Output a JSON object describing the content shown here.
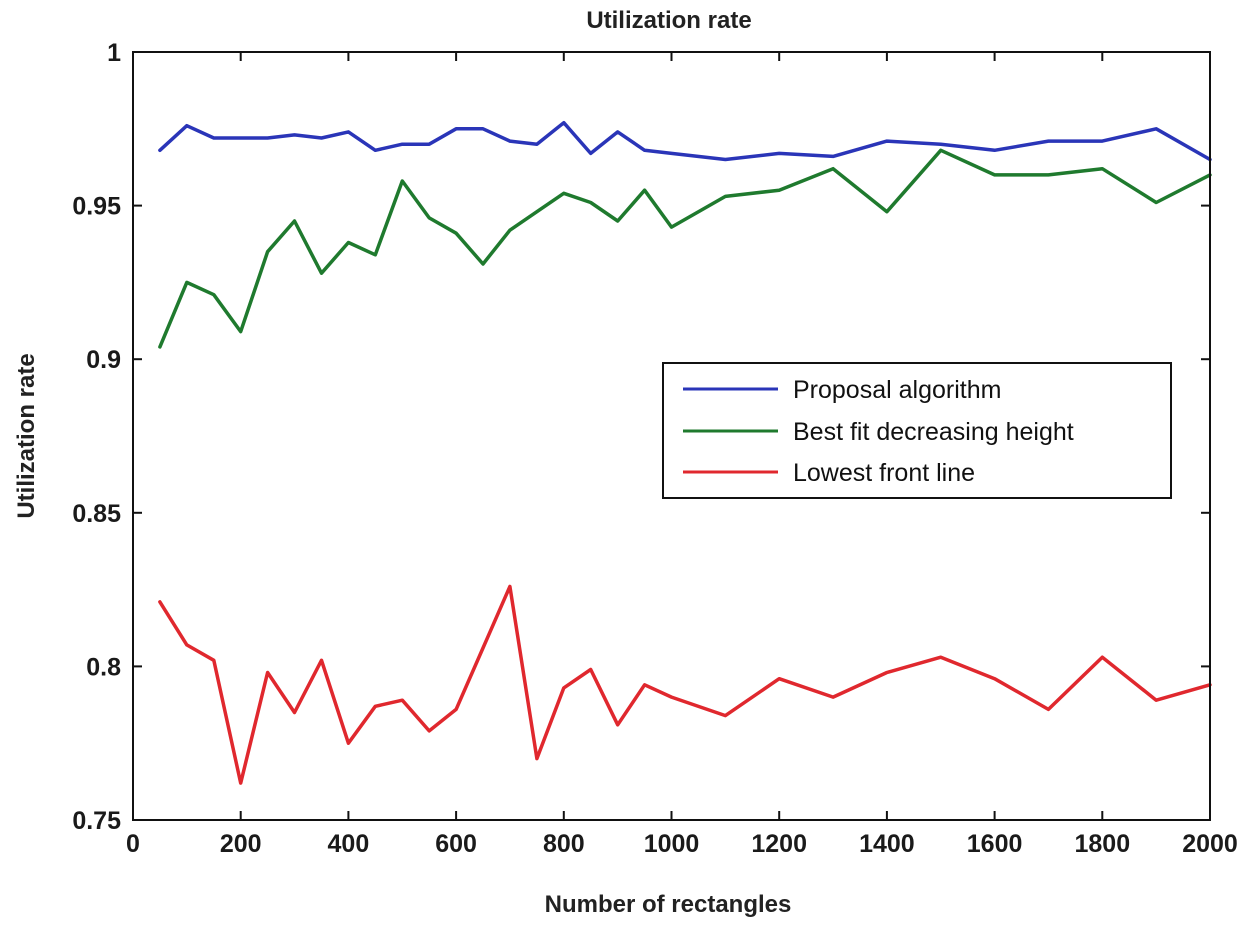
{
  "chart_data": {
    "type": "line",
    "title": "Utilization rate",
    "xlabel": "Number of rectangles",
    "ylabel": "Utilization rate",
    "xlim": [
      0,
      2000
    ],
    "ylim": [
      0.75,
      1
    ],
    "xticks": [
      0,
      200,
      400,
      600,
      800,
      1000,
      1200,
      1400,
      1600,
      1800,
      2000
    ],
    "yticks": [
      0.75,
      0.8,
      0.85,
      0.9,
      0.95,
      1
    ],
    "xtick_labels": [
      "0",
      "200",
      "400",
      "600",
      "800",
      "1000",
      "1200",
      "1400",
      "1600",
      "1800",
      "2000"
    ],
    "ytick_labels": [
      "0.75",
      "0.8",
      "0.85",
      "0.9",
      "0.95",
      "1"
    ],
    "grid": false,
    "legend_position": "center-right",
    "x": [
      50,
      100,
      150,
      200,
      250,
      300,
      350,
      400,
      450,
      500,
      550,
      600,
      650,
      700,
      750,
      800,
      850,
      900,
      950,
      1000,
      1100,
      1200,
      1300,
      1400,
      1500,
      1600,
      1700,
      1800,
      1900,
      2000
    ],
    "series": [
      {
        "name": "Proposal algorithm",
        "color": "#2a35b8",
        "values": [
          0.968,
          0.976,
          0.972,
          0.972,
          0.972,
          0.973,
          0.972,
          0.974,
          0.968,
          0.97,
          0.97,
          0.975,
          0.975,
          0.971,
          0.97,
          0.977,
          0.967,
          0.974,
          0.968,
          0.967,
          0.965,
          0.967,
          0.966,
          0.971,
          0.97,
          0.968,
          0.971,
          0.971,
          0.975,
          0.965
        ]
      },
      {
        "name": "Best fit decreasing height",
        "color": "#1f7a2e",
        "values": [
          0.904,
          0.925,
          0.921,
          0.909,
          0.935,
          0.945,
          0.928,
          0.938,
          0.934,
          0.958,
          0.946,
          0.941,
          0.931,
          0.942,
          0.948,
          0.954,
          0.951,
          0.945,
          0.955,
          0.943,
          0.953,
          0.955,
          0.962,
          0.948,
          0.968,
          0.96,
          0.96,
          0.962,
          0.951,
          0.96
        ]
      },
      {
        "name": "Lowest front line",
        "color": "#e0282e",
        "values": [
          0.821,
          0.807,
          0.802,
          0.762,
          0.798,
          0.785,
          0.802,
          0.775,
          0.787,
          0.789,
          0.779,
          0.786,
          0.806,
          0.826,
          0.77,
          0.793,
          0.799,
          0.781,
          0.794,
          0.79,
          0.784,
          0.796,
          0.79,
          0.798,
          0.803,
          0.796,
          0.786,
          0.803,
          0.789,
          0.794
        ]
      }
    ]
  }
}
